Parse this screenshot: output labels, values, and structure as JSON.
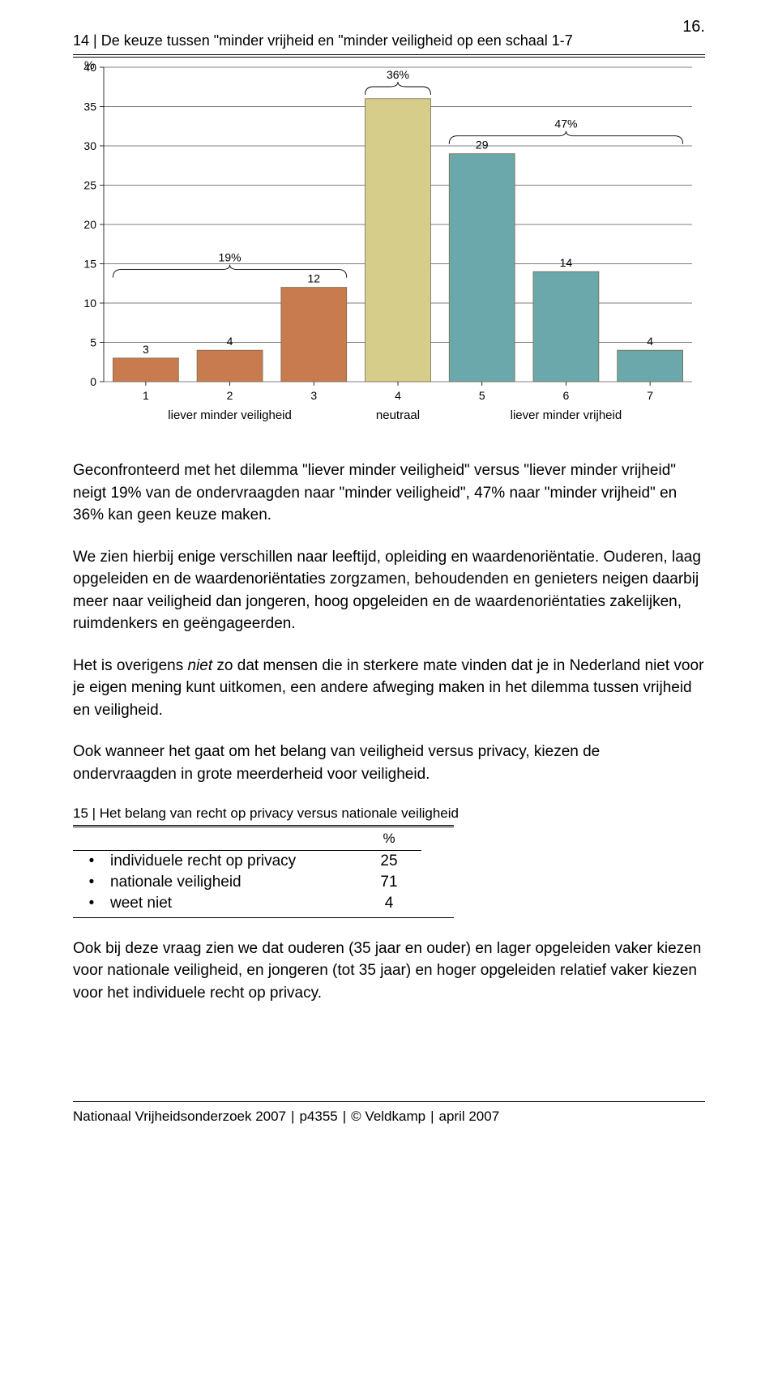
{
  "page_number": "16.",
  "chart": {
    "type": "bar",
    "title": "14 | De keuze tussen \"minder vrijheid en \"minder veiligheid op een schaal 1-7",
    "y_axis_label": "%",
    "ylim": [
      0,
      40
    ],
    "yticks": [
      0,
      5,
      10,
      15,
      20,
      25,
      30,
      35,
      40
    ],
    "categories": [
      "1",
      "2",
      "3",
      "4",
      "5",
      "6",
      "7"
    ],
    "values": [
      3,
      4,
      12,
      36,
      29,
      14,
      4
    ],
    "value_labels": [
      "3",
      "4",
      "12",
      "",
      "29",
      "14",
      "4"
    ],
    "bar_colors": [
      "#c77b4f",
      "#c77b4f",
      "#c77b4f",
      "#d6cd8b",
      "#6aa8ac",
      "#6aa8ac",
      "#6aa8ac"
    ],
    "bar_stroke": "#7a6a4a",
    "x_category_labels": {
      "left": "liever minder veiligheid",
      "center": "neutraal",
      "right": "liever minder vrijheid"
    },
    "group_annotations": [
      {
        "label": "19%",
        "span": [
          1,
          3
        ]
      },
      {
        "label": "36%",
        "span": [
          4,
          4
        ]
      },
      {
        "label": "47%",
        "span": [
          5,
          7
        ]
      }
    ],
    "background_color": "#ffffff",
    "grid_color": "#000000",
    "axis_fontsize": 14,
    "bar_width_ratio": 0.78
  },
  "paragraphs": {
    "p1": "Geconfronteerd met het dilemma \"liever minder veiligheid\" versus \"liever minder vrijheid\" neigt 19% van de ondervraagden naar \"minder veiligheid\", 47% naar \"minder vrijheid\" en 36% kan geen keuze maken.",
    "p2": "We zien hierbij enige verschillen naar leeftijd, opleiding en waardenoriëntatie. Ouderen, laag opgeleiden en de waardenoriëntaties zorgzamen, behoudenden en genieters neigen daarbij meer naar veiligheid dan jongeren, hoog opgeleiden en de waardenoriëntaties zakelijken, ruimdenkers en geëngageerden.",
    "p3a": "Het is overigens ",
    "p3_italic": "niet",
    "p3b": " zo dat mensen die in sterkere mate vinden dat je in Nederland niet voor je eigen mening kunt uitkomen, een andere afweging maken in het dilemma tussen vrijheid en veiligheid.",
    "p4": "Ook wanneer het gaat om het belang van veiligheid versus privacy, kiezen de ondervraagden in grote meerderheid voor veiligheid.",
    "p5": "Ook bij deze vraag zien we dat ouderen (35 jaar en ouder) en lager opgeleiden vaker kiezen voor nationale veiligheid, en jongeren (tot 35 jaar) en hoger opgeleiden relatief vaker kiezen voor het individuele recht op privacy."
  },
  "table15": {
    "title": "15 | Het belang van recht op privacy versus nationale veiligheid",
    "header_pct": "%",
    "rows": [
      {
        "label": "individuele recht op privacy",
        "value": "25"
      },
      {
        "label": "nationale veiligheid",
        "value": "71"
      },
      {
        "label": "weet niet",
        "value": "4"
      }
    ]
  },
  "footer": {
    "a": "Nationaal Vrijheidsonderzoek 2007",
    "sep": "|",
    "b": "p4355",
    "c": "© Veldkamp",
    "d": "april 2007"
  }
}
